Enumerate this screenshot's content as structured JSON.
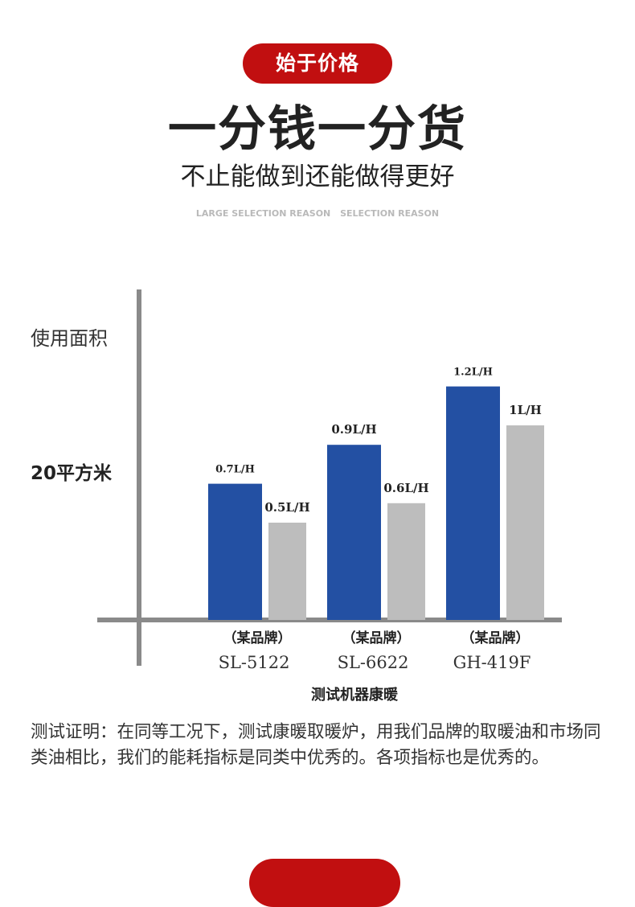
{
  "header": {
    "pill_label": "始于价格",
    "headline": "一分钱一分货",
    "subheadline": "不止能做到还能做得更好",
    "tagline_left": "LARGE SELECTION REASON",
    "tagline_right": "SELECTION REASON"
  },
  "chart_data": {
    "type": "bar",
    "title": "",
    "ylabel": "使用面积",
    "ytick_label": "20平方米",
    "xlabel": "测试机器康暖",
    "ylim": [
      0,
      1.4
    ],
    "grid": false,
    "categories": [
      {
        "brand": "（某品牌）",
        "model": "SL-5122"
      },
      {
        "brand": "（某品牌）",
        "model": "SL-6622"
      },
      {
        "brand": "（某品牌）",
        "model": "GH-419F"
      }
    ],
    "series": [
      {
        "values": [
          0.7,
          0.9,
          1.2
        ],
        "labels": [
          "0.7L/H",
          "0.9L/H",
          "1.2L/H"
        ],
        "color": "#2350a3"
      },
      {
        "values": [
          0.5,
          0.6,
          1.0
        ],
        "labels": [
          "0.5L/H",
          "0.6L/H",
          "1L/H"
        ],
        "color": "#bdbdbd"
      }
    ],
    "axis_color": "#8a8a8a"
  },
  "description": "测试证明：在同等工况下，测试康暖取暖炉，用我们品牌的取暖油和市场同类油相比，我们的能耗指标是同类中优秀的。各项指标也是优秀的。",
  "colors": {
    "accent": "#c10f10"
  }
}
